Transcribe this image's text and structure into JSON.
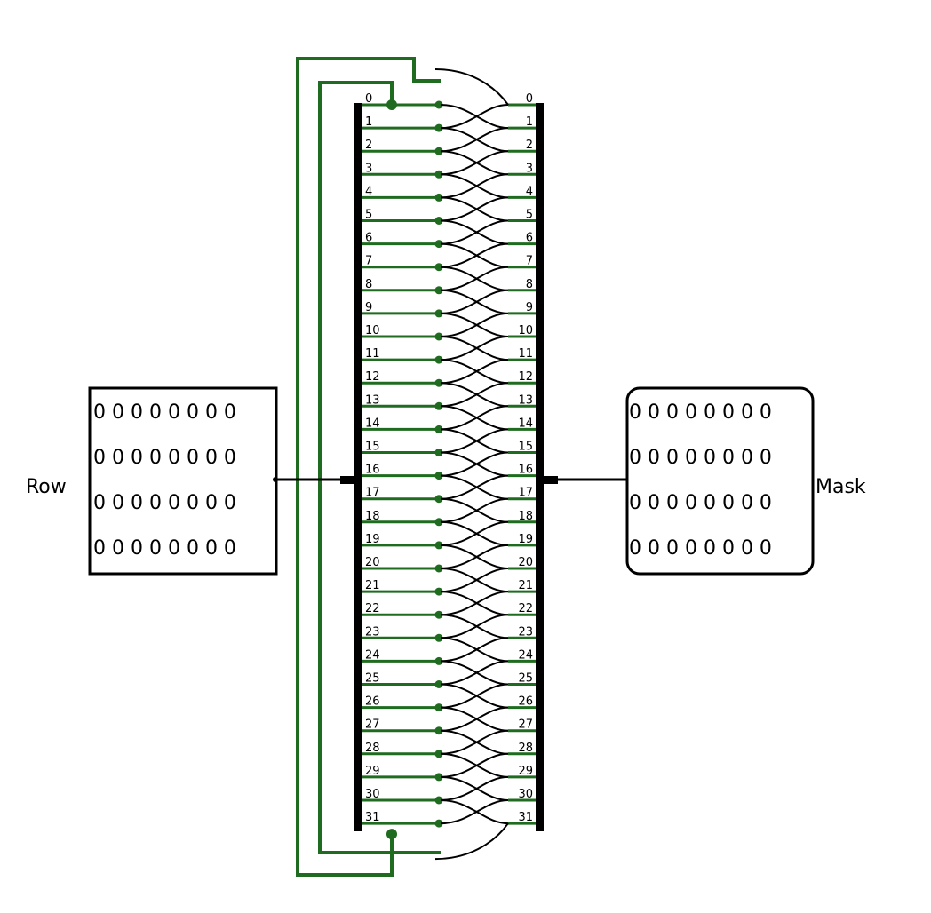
{
  "row_pin": {
    "label": "Row",
    "bits": [
      "0 0 0 0 0 0 0 0",
      "0 0 0 0 0 0 0 0",
      "0 0 0 0 0 0 0 0",
      "0 0 0 0 0 0 0 0"
    ]
  },
  "mask_pin": {
    "label": "Mask",
    "bits": [
      "0 0 0 0 0 0 0 0",
      "0 0 0 0 0 0 0 0",
      "0 0 0 0 0 0 0 0",
      "0 0 0 0 0 0 0 0"
    ]
  },
  "splitter_left": {
    "bit_labels": [
      "0",
      "1",
      "2",
      "3",
      "4",
      "5",
      "6",
      "7",
      "8",
      "9",
      "10",
      "11",
      "12",
      "13",
      "14",
      "15",
      "16",
      "17",
      "18",
      "19",
      "20",
      "21",
      "22",
      "23",
      "24",
      "25",
      "26",
      "27",
      "28",
      "29",
      "30",
      "31"
    ]
  },
  "splitter_right": {
    "bit_labels": [
      "0",
      "1",
      "2",
      "3",
      "4",
      "5",
      "6",
      "7",
      "8",
      "9",
      "10",
      "11",
      "12",
      "13",
      "14",
      "15",
      "16",
      "17",
      "18",
      "19",
      "20",
      "21",
      "22",
      "23",
      "24",
      "25",
      "26",
      "27",
      "28",
      "29",
      "30",
      "31"
    ]
  },
  "colors": {
    "active_wire": "#1f6b1f",
    "bus_wire": "#000000",
    "splitter_bar": "#000000"
  }
}
